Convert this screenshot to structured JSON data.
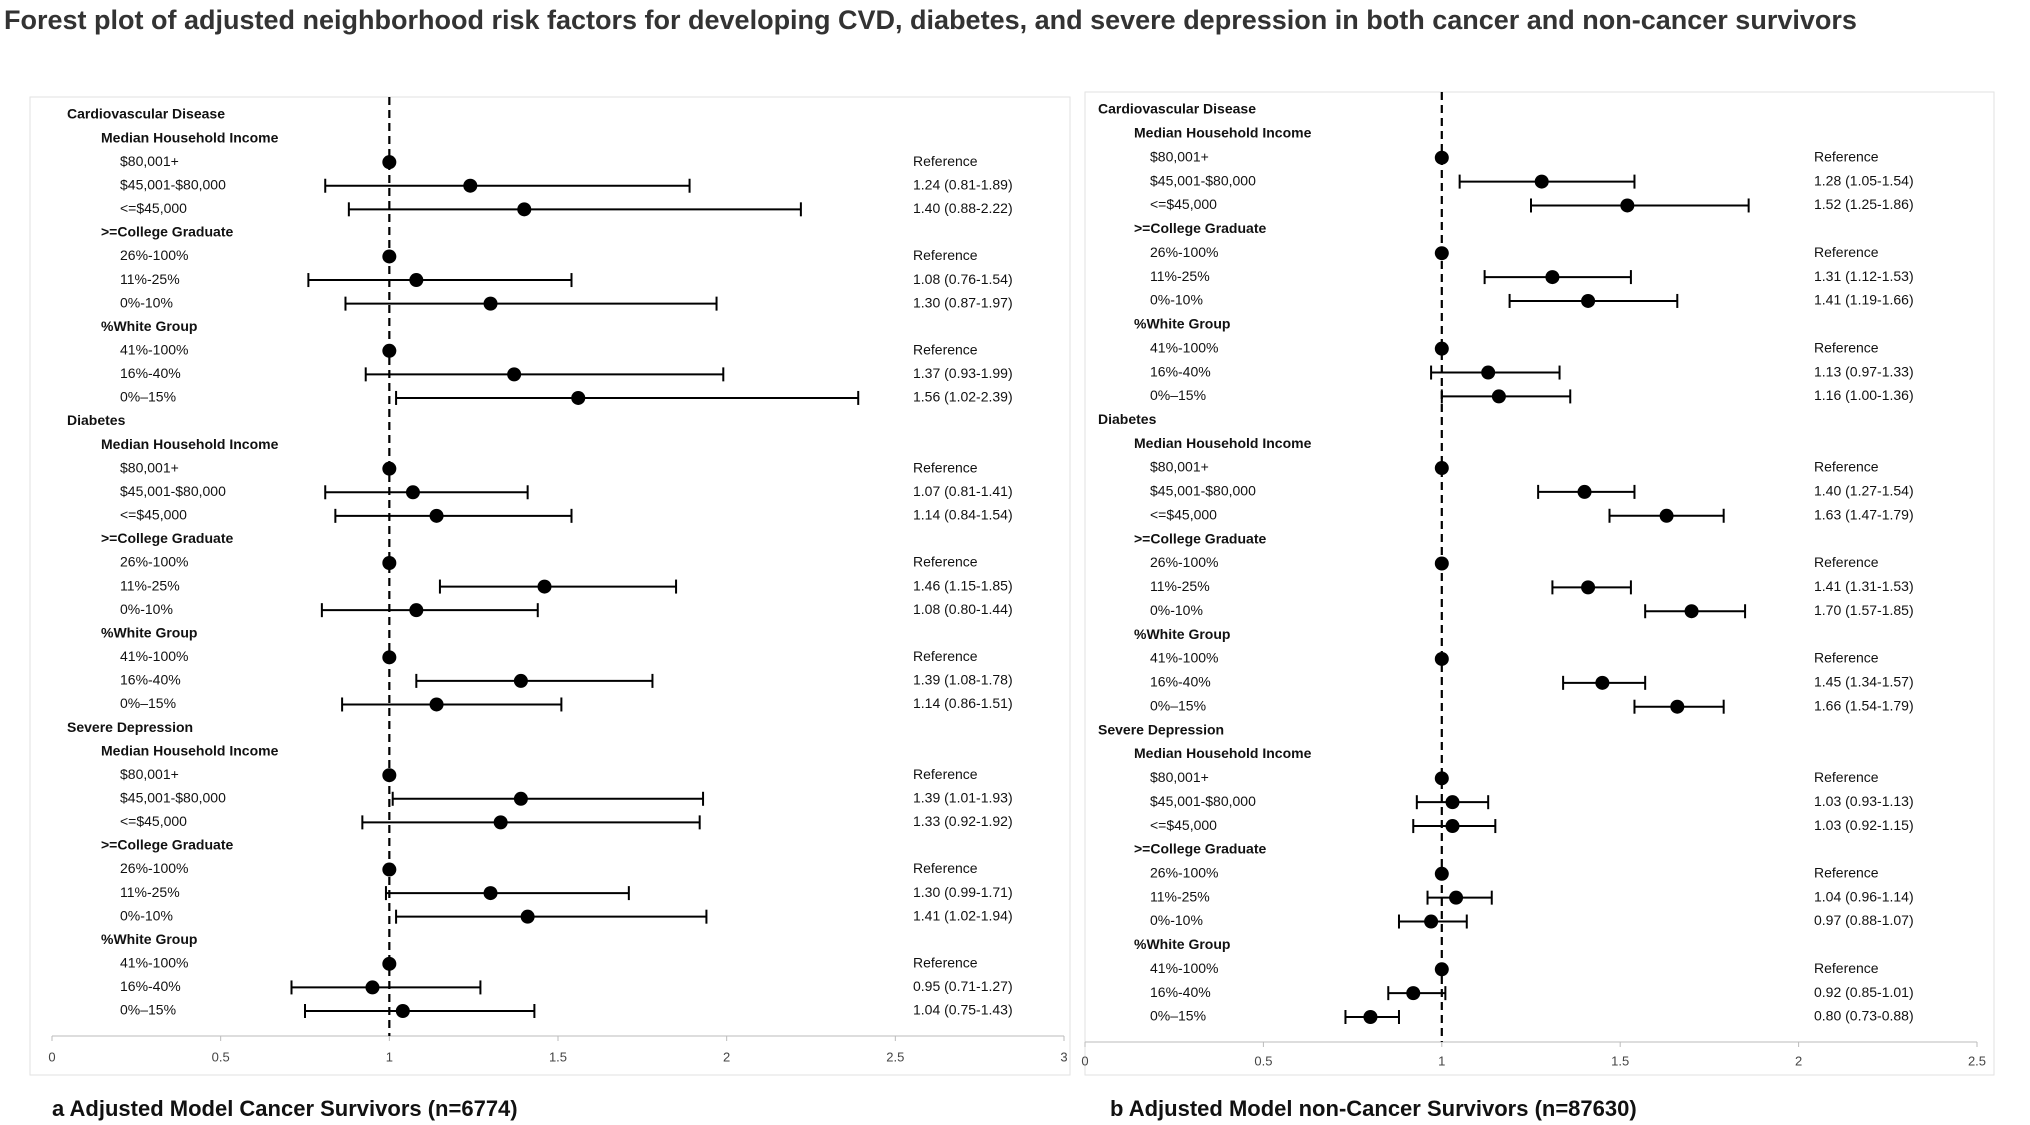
{
  "title": "Forest plot of adjusted neighborhood risk factors for developing CVD, diabetes, and severe depression in both cancer and non-cancer survivors",
  "chart_data": [
    {
      "type": "forest",
      "title": "a Adjusted Model Cancer Survivors (n=6774)",
      "xlim": [
        0,
        3
      ],
      "xticks": [
        0,
        0.5,
        1,
        1.5,
        2,
        2.5,
        3
      ],
      "reference_line": 1,
      "color": "#000000",
      "groups": [
        {
          "name": "Cardiovascular Disease",
          "factors": [
            {
              "name": "Median Household Income",
              "categories": [
                "$80,001+",
                "$45,001-$80,000",
                "<=$45,000"
              ],
              "values": [
                1,
                1.24,
                1.4
              ],
              "lower": [
                null,
                0.81,
                0.88
              ],
              "upper": [
                null,
                1.89,
                2.22
              ],
              "value_labels": [
                "Reference",
                "1.24 (0.81-1.89)",
                "1.40 (0.88-2.22)"
              ]
            },
            {
              "name": ">=College Graduate",
              "categories": [
                "26%-100%",
                "11%-25%",
                "0%-10%"
              ],
              "values": [
                1,
                1.08,
                1.3
              ],
              "lower": [
                null,
                0.76,
                0.87
              ],
              "upper": [
                null,
                1.54,
                1.97
              ],
              "value_labels": [
                "Reference",
                "1.08 (0.76-1.54)",
                "1.30 (0.87-1.97)"
              ]
            },
            {
              "name": "%White Group",
              "categories": [
                "41%-100%",
                "16%-40%",
                "0%–15%"
              ],
              "values": [
                1,
                1.37,
                1.56
              ],
              "lower": [
                null,
                0.93,
                1.02
              ],
              "upper": [
                null,
                1.99,
                2.39
              ],
              "value_labels": [
                "Reference",
                "1.37 (0.93-1.99)",
                "1.56 (1.02-2.39)"
              ]
            }
          ]
        },
        {
          "name": "Diabetes",
          "factors": [
            {
              "name": "Median Household Income",
              "categories": [
                "$80,001+",
                "$45,001-$80,000",
                "<=$45,000"
              ],
              "values": [
                1,
                1.07,
                1.14
              ],
              "lower": [
                null,
                0.81,
                0.84
              ],
              "upper": [
                null,
                1.41,
                1.54
              ],
              "value_labels": [
                "Reference",
                "1.07 (0.81-1.41)",
                "1.14 (0.84-1.54)"
              ]
            },
            {
              "name": ">=College Graduate",
              "categories": [
                "26%-100%",
                "11%-25%",
                "0%-10%"
              ],
              "values": [
                1,
                1.46,
                1.08
              ],
              "lower": [
                null,
                1.15,
                0.8
              ],
              "upper": [
                null,
                1.85,
                1.44
              ],
              "value_labels": [
                "Reference",
                "1.46 (1.15-1.85)",
                "1.08 (0.80-1.44)"
              ]
            },
            {
              "name": "%White Group",
              "categories": [
                "41%-100%",
                "16%-40%",
                "0%–15%"
              ],
              "values": [
                1,
                1.39,
                1.14
              ],
              "lower": [
                null,
                1.08,
                0.86
              ],
              "upper": [
                null,
                1.78,
                1.51
              ],
              "value_labels": [
                "Reference",
                "1.39 (1.08-1.78)",
                "1.14 (0.86-1.51)"
              ]
            }
          ]
        },
        {
          "name": "Severe Depression",
          "factors": [
            {
              "name": "Median Household Income",
              "categories": [
                "$80,001+",
                "$45,001-$80,000",
                "<=$45,000"
              ],
              "values": [
                1,
                1.39,
                1.33
              ],
              "lower": [
                null,
                1.01,
                0.92
              ],
              "upper": [
                null,
                1.93,
                1.92
              ],
              "value_labels": [
                "Reference",
                "1.39 (1.01-1.93)",
                "1.33 (0.92-1.92)"
              ]
            },
            {
              "name": ">=College Graduate",
              "categories": [
                "26%-100%",
                "11%-25%",
                "0%-10%"
              ],
              "values": [
                1,
                1.3,
                1.41
              ],
              "lower": [
                null,
                0.99,
                1.02
              ],
              "upper": [
                null,
                1.71,
                1.94
              ],
              "value_labels": [
                "Reference",
                "1.30 (0.99-1.71)",
                "1.41 (1.02-1.94)"
              ]
            },
            {
              "name": "%White Group",
              "categories": [
                "41%-100%",
                "16%-40%",
                "0%–15%"
              ],
              "values": [
                1,
                0.95,
                1.04
              ],
              "lower": [
                null,
                0.71,
                0.75
              ],
              "upper": [
                null,
                1.27,
                1.43
              ],
              "value_labels": [
                "Reference",
                "0.95 (0.71-1.27)",
                "1.04 (0.75-1.43)"
              ]
            }
          ]
        }
      ]
    },
    {
      "type": "forest",
      "title": "b Adjusted Model non-Cancer Survivors (n=87630)",
      "xlim": [
        0,
        2.5
      ],
      "xticks": [
        0,
        0.5,
        1,
        1.5,
        2,
        2.5
      ],
      "reference_line": 1,
      "color": "#000000",
      "groups": [
        {
          "name": "Cardiovascular Disease",
          "factors": [
            {
              "name": "Median Household Income",
              "categories": [
                "$80,001+",
                "$45,001-$80,000",
                "<=$45,000"
              ],
              "values": [
                1,
                1.28,
                1.52
              ],
              "lower": [
                null,
                1.05,
                1.25
              ],
              "upper": [
                null,
                1.54,
                1.86
              ],
              "value_labels": [
                "Reference",
                "1.28 (1.05-1.54)",
                "1.52 (1.25-1.86)"
              ]
            },
            {
              "name": ">=College Graduate",
              "categories": [
                "26%-100%",
                "11%-25%",
                "0%-10%"
              ],
              "values": [
                1,
                1.31,
                1.41
              ],
              "lower": [
                null,
                1.12,
                1.19
              ],
              "upper": [
                null,
                1.53,
                1.66
              ],
              "value_labels": [
                "Reference",
                "1.31 (1.12-1.53)",
                "1.41 (1.19-1.66)"
              ]
            },
            {
              "name": "%White Group",
              "categories": [
                "41%-100%",
                "16%-40%",
                "0%–15%"
              ],
              "values": [
                1,
                1.13,
                1.16
              ],
              "lower": [
                null,
                0.97,
                1.0
              ],
              "upper": [
                null,
                1.33,
                1.36
              ],
              "value_labels": [
                "Reference",
                "1.13 (0.97-1.33)",
                "1.16 (1.00-1.36)"
              ]
            }
          ]
        },
        {
          "name": "Diabetes",
          "factors": [
            {
              "name": "Median Household Income",
              "categories": [
                "$80,001+",
                "$45,001-$80,000",
                "<=$45,000"
              ],
              "values": [
                1,
                1.4,
                1.63
              ],
              "lower": [
                null,
                1.27,
                1.47
              ],
              "upper": [
                null,
                1.54,
                1.79
              ],
              "value_labels": [
                "Reference",
                "1.40 (1.27-1.54)",
                "1.63 (1.47-1.79)"
              ]
            },
            {
              "name": ">=College Graduate",
              "categories": [
                "26%-100%",
                "11%-25%",
                "0%-10%"
              ],
              "values": [
                1,
                1.41,
                1.7
              ],
              "lower": [
                null,
                1.31,
                1.57
              ],
              "upper": [
                null,
                1.53,
                1.85
              ],
              "value_labels": [
                "Reference",
                "1.41 (1.31-1.53)",
                "1.70 (1.57-1.85)"
              ]
            },
            {
              "name": "%White Group",
              "categories": [
                "41%-100%",
                "16%-40%",
                "0%–15%"
              ],
              "values": [
                1,
                1.45,
                1.66
              ],
              "lower": [
                null,
                1.34,
                1.54
              ],
              "upper": [
                null,
                1.57,
                1.79
              ],
              "value_labels": [
                "Reference",
                "1.45 (1.34-1.57)",
                "1.66 (1.54-1.79)"
              ]
            }
          ]
        },
        {
          "name": "Severe Depression",
          "factors": [
            {
              "name": "Median Household Income",
              "categories": [
                "$80,001+",
                "$45,001-$80,000",
                "<=$45,000"
              ],
              "values": [
                1,
                1.03,
                1.03
              ],
              "lower": [
                null,
                0.93,
                0.92
              ],
              "upper": [
                null,
                1.13,
                1.15
              ],
              "value_labels": [
                "Reference",
                "1.03 (0.93-1.13)",
                "1.03 (0.92-1.15)"
              ]
            },
            {
              "name": ">=College Graduate",
              "categories": [
                "26%-100%",
                "11%-25%",
                "0%-10%"
              ],
              "values": [
                1,
                1.04,
                0.97
              ],
              "lower": [
                null,
                0.96,
                0.88
              ],
              "upper": [
                null,
                1.14,
                1.07
              ],
              "value_labels": [
                "Reference",
                "1.04 (0.96-1.14)",
                "0.97 (0.88-1.07)"
              ]
            },
            {
              "name": "%White Group",
              "categories": [
                "41%-100%",
                "16%-40%",
                "0%–15%"
              ],
              "values": [
                1,
                0.92,
                0.8
              ],
              "lower": [
                null,
                0.85,
                0.73
              ],
              "upper": [
                null,
                1.01,
                0.88
              ],
              "value_labels": [
                "Reference",
                "0.92 (0.85-1.01)",
                "0.80 (0.73-0.88)"
              ]
            }
          ]
        }
      ]
    }
  ]
}
